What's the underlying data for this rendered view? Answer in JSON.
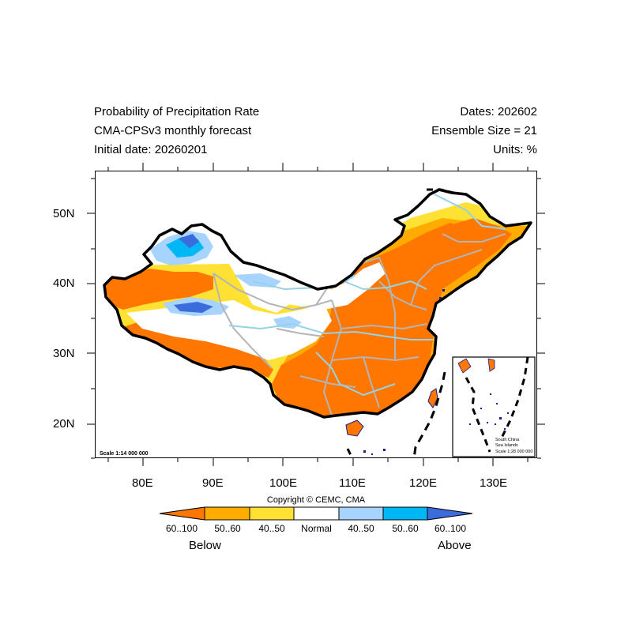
{
  "header": {
    "title": "Probability of Precipitation Rate",
    "model": "CMA-CPSv3 monthly forecast",
    "initial_date": "Initial date: 20260201",
    "dates": "Dates: 202602",
    "ensemble": "Ensemble Size = 21",
    "units": "Units: %"
  },
  "map": {
    "scale_main": "Scale 1:14 000 000",
    "inset": {
      "line1": "South China",
      "line2": "Sea Islands",
      "scale": "Scale 1:28 000 000"
    },
    "x_ticks": [
      "80E",
      "90E",
      "100E",
      "110E",
      "120E",
      "130E"
    ],
    "y_ticks": [
      "50N",
      "40N",
      "30N",
      "20N"
    ]
  },
  "copyright": "Copyright © CEMC, CMA",
  "legend": {
    "labels": [
      "60..100",
      "50..60",
      "40..50",
      "Normal",
      "40..50",
      "50..60",
      "60..100"
    ],
    "colors": [
      "#ff7700",
      "#ffab00",
      "#ffe133",
      "#ffffff",
      "#a6d4ff",
      "#00b7f5",
      "#3c6cdc"
    ],
    "below": "Below",
    "above": "Above"
  },
  "colors": {
    "border": "#000000",
    "province_lines": "#b4b4b4",
    "rivers": "#96d2e6",
    "water": "#1a1a8c"
  }
}
